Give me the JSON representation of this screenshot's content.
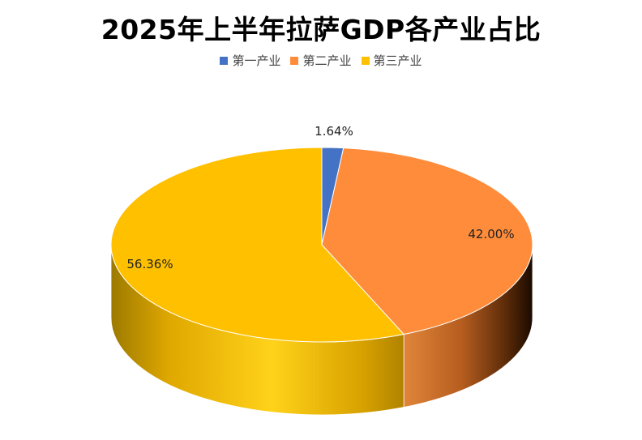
{
  "chart_data": {
    "type": "pie",
    "title": "2025年上半年拉萨GDP各产业占比",
    "categories": [
      "第一产业",
      "第二产业",
      "第三产业"
    ],
    "values": [
      1.64,
      42.0,
      56.36
    ],
    "labels": [
      "1.64%",
      "42.00%",
      "56.36%"
    ],
    "colors": [
      "#4472C4",
      "#FF8C3A",
      "#FFC000"
    ],
    "legend_position": "top",
    "style": "3d"
  }
}
